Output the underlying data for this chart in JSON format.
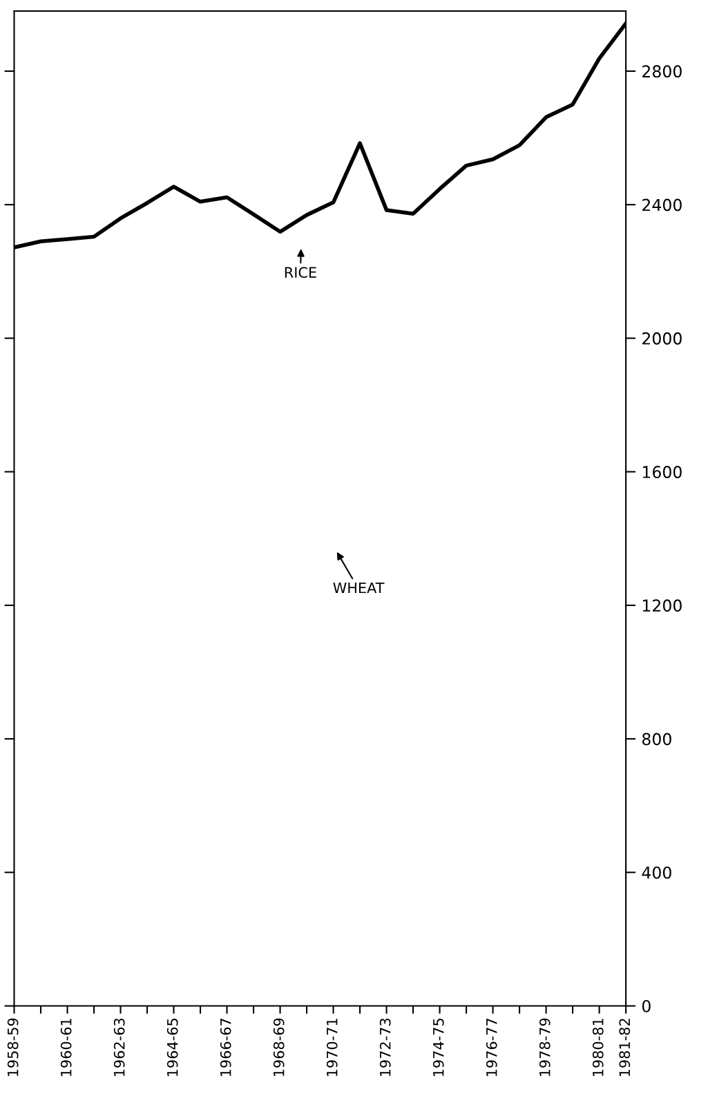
{
  "chart_data": {
    "type": "line",
    "categories": [
      "1958-59",
      null,
      "1960-61",
      null,
      "1962-63",
      null,
      "1964-65",
      null,
      "1966-67",
      null,
      "1968-69",
      null,
      "1970-71",
      null,
      "1972-73",
      null,
      "1974-75",
      null,
      "1976-77",
      null,
      "1978-79",
      null,
      "1980-81",
      "1981-82"
    ],
    "series": [
      {
        "color": "#000000",
        "values": [
          2272,
          2290,
          2297,
          2304,
          2359,
          2405,
          2454,
          2409,
          2422,
          2371,
          2319,
          2369,
          2407,
          2584,
          2384,
          2373,
          2447,
          2517,
          2536,
          2578,
          2662,
          2700,
          2838,
          2943
        ]
      }
    ],
    "ylim": [
      0,
      2980
    ],
    "yticks": [
      0,
      400,
      800,
      1200,
      1600,
      2000,
      2400,
      2800
    ],
    "annotations": [
      "RICE",
      "WHEAT"
    ],
    "grid": false,
    "legend": false,
    "marker": "none",
    "line_style": "solid"
  }
}
